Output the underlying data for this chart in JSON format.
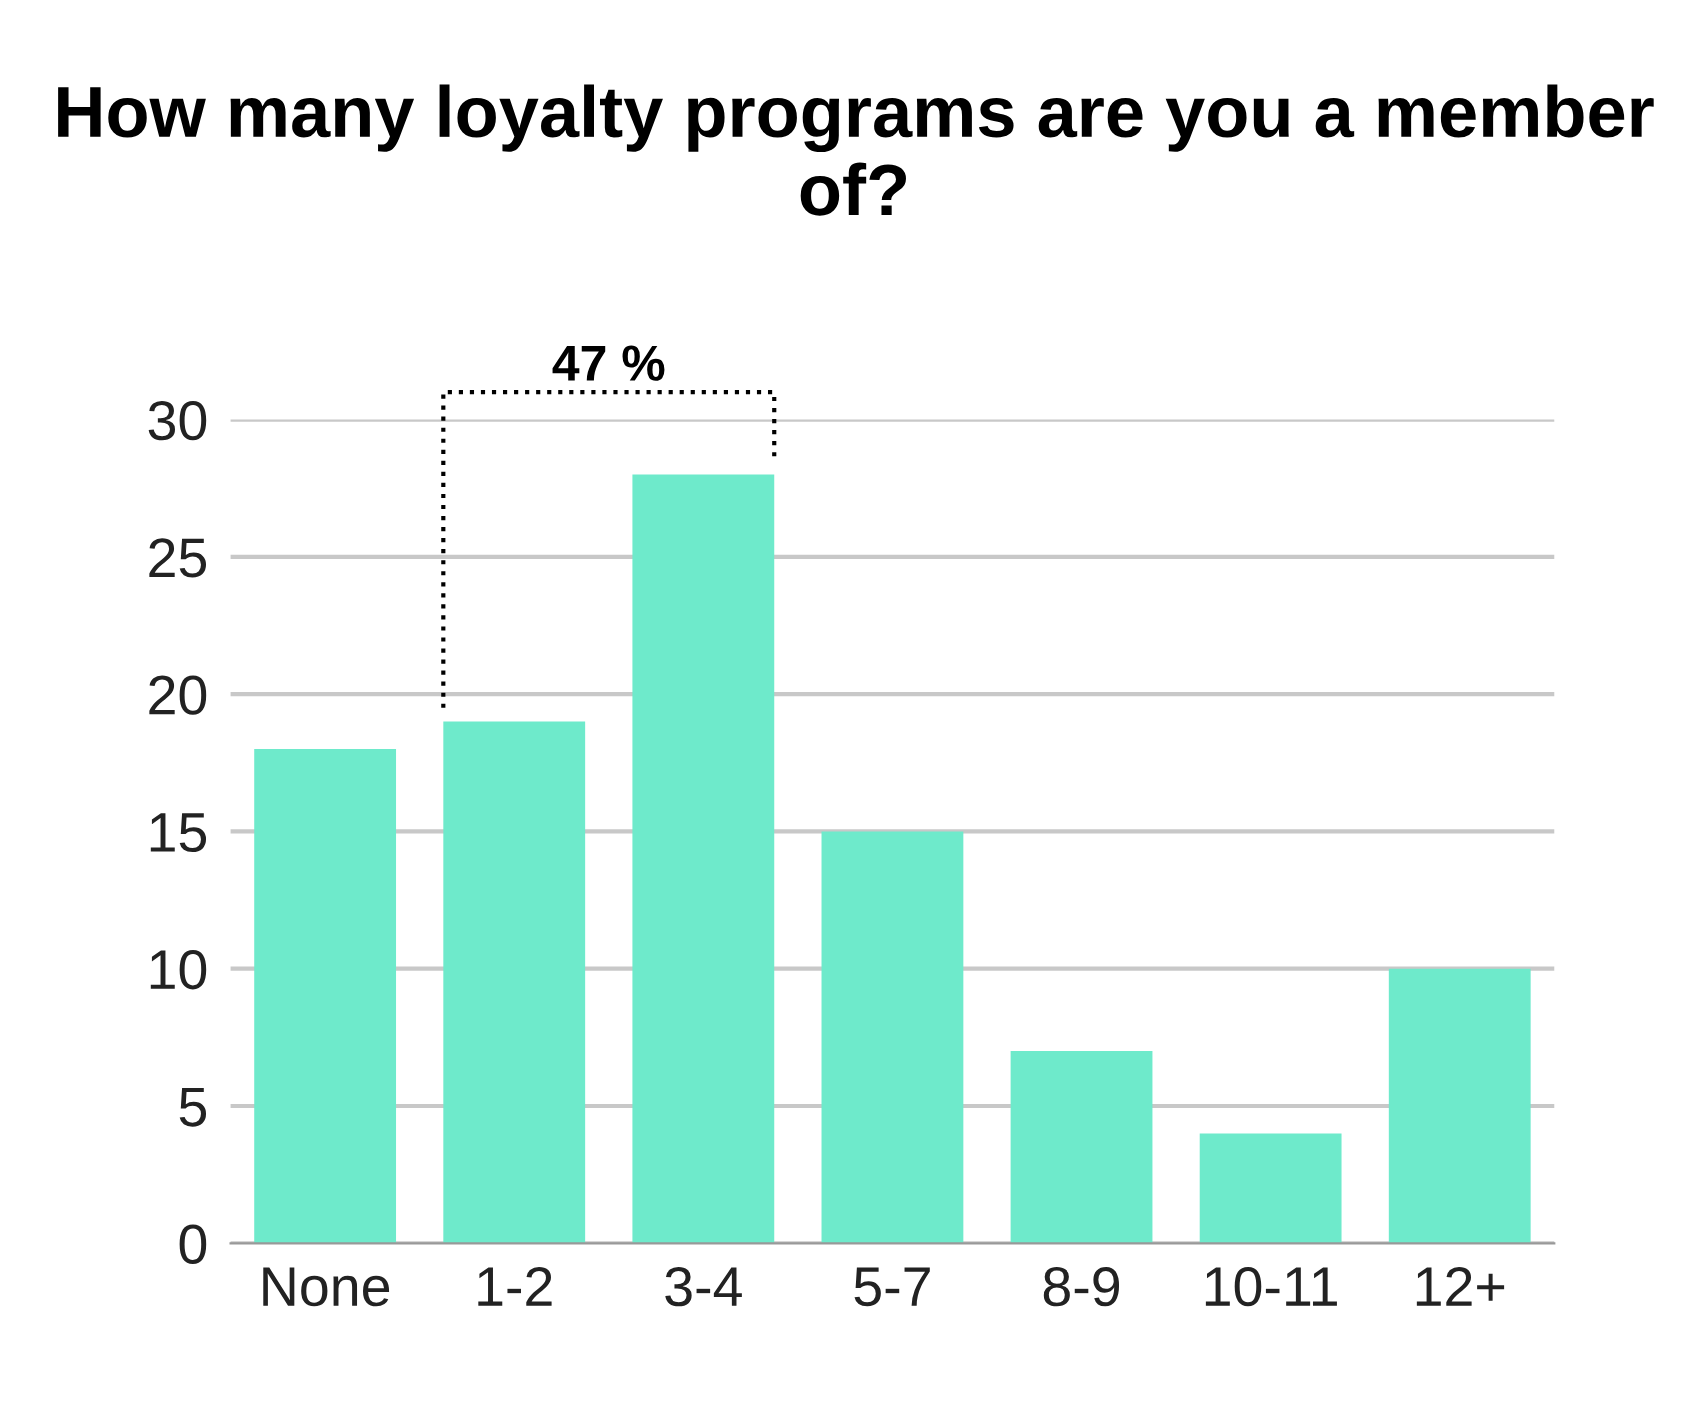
{
  "chart_data": {
    "type": "bar",
    "title": "How many loyalty programs are you a member of?",
    "categories": [
      "None",
      "1-2",
      "3-4",
      "5-7",
      "8-9",
      "10-11",
      "12+"
    ],
    "values": [
      18,
      19,
      28,
      15,
      7,
      4,
      10
    ],
    "color": "#6eeacb",
    "ylim": [
      0,
      30
    ],
    "yticks": [
      0,
      5,
      10,
      15,
      20,
      25,
      30
    ],
    "grid": "y",
    "annotations": [
      "47 %"
    ]
  }
}
